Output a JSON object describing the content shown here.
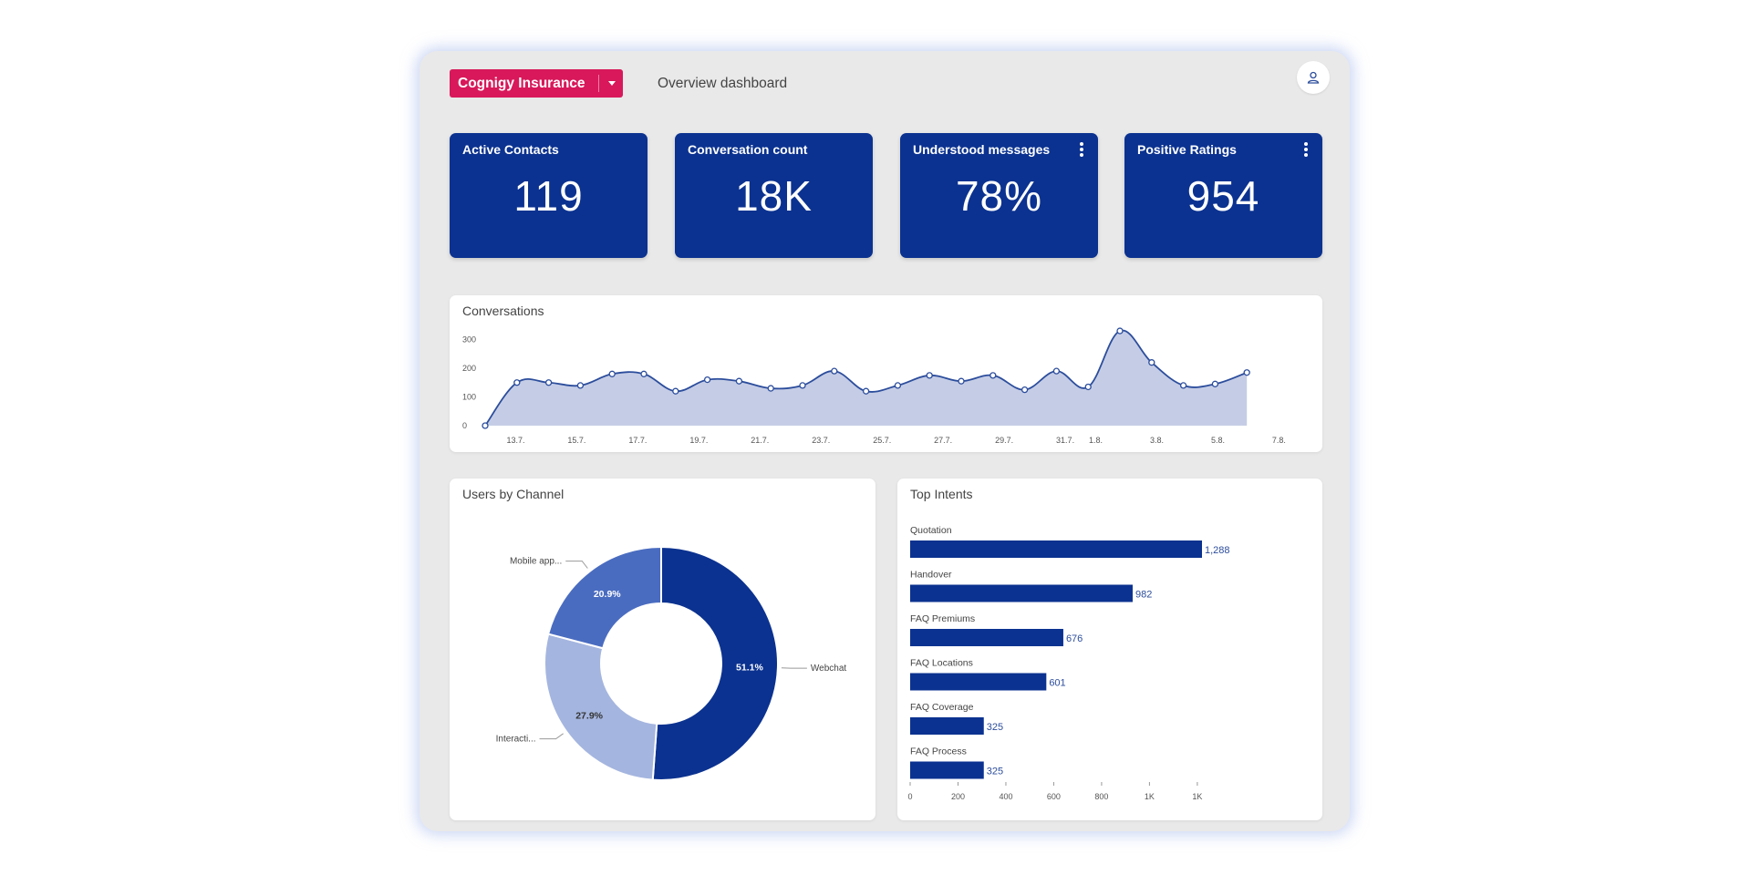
{
  "header": {
    "brand_label": "Cognigy Insurance",
    "page_title": "Overview dashboard",
    "user_icon": "user-icon"
  },
  "kpis": [
    {
      "title": "Active Contacts",
      "value": "119",
      "has_menu": false
    },
    {
      "title": "Conversation count",
      "value": "18K",
      "has_menu": false
    },
    {
      "title": "Understood messages",
      "value": "78%",
      "has_menu": true
    },
    {
      "title": "Positive Ratings",
      "value": "954",
      "has_menu": true
    }
  ],
  "colors": {
    "accent": "#d8185a",
    "primary": "#0b3290",
    "area_fill": "#c5cde6",
    "line": "#2c4d9c",
    "donut": [
      "#0b3290",
      "#a4b5df",
      "#4a6cc0"
    ]
  },
  "chart_data": [
    {
      "type": "area",
      "title": "Conversations",
      "y_ticks": [
        "300",
        "200",
        "100",
        "0"
      ],
      "ylim": [
        0,
        350
      ],
      "x_tick_labels": [
        {
          "i": 1,
          "label": "13.7."
        },
        {
          "i": 3,
          "label": "15.7."
        },
        {
          "i": 5,
          "label": "17.7."
        },
        {
          "i": 7,
          "label": "19.7."
        },
        {
          "i": 9,
          "label": "21.7."
        },
        {
          "i": 11,
          "label": "23.7."
        },
        {
          "i": 13,
          "label": "25.7."
        },
        {
          "i": 15,
          "label": "27.7."
        },
        {
          "i": 17,
          "label": "29.7."
        },
        {
          "i": 19,
          "label": "31.7."
        },
        {
          "i": 20,
          "label": "1.8."
        },
        {
          "i": 22,
          "label": "3.8."
        },
        {
          "i": 24,
          "label": "5.8."
        },
        {
          "i": 26,
          "label": "7.8."
        }
      ],
      "values": [
        0,
        150,
        150,
        140,
        180,
        180,
        120,
        160,
        155,
        130,
        140,
        190,
        120,
        140,
        175,
        155,
        175,
        125,
        190,
        135,
        330,
        220,
        140,
        145,
        185
      ]
    },
    {
      "type": "pie",
      "title": "Users by Channel",
      "donut": true,
      "slices": [
        {
          "label": "Webchat",
          "value": 51.1,
          "pct_label": "51.1%"
        },
        {
          "label": "Interacti...",
          "value": 27.9,
          "pct_label": "27.9%"
        },
        {
          "label": "Mobile app...",
          "value": 20.9,
          "pct_label": "20.9%"
        }
      ]
    },
    {
      "type": "bar",
      "orientation": "horizontal",
      "title": "Top Intents",
      "categories": [
        "Quotation",
        "Handover",
        "FAQ Premiums",
        "FAQ Locations",
        "FAQ Coverage",
        "FAQ Process"
      ],
      "values": [
        1288,
        982,
        676,
        601,
        325,
        325
      ],
      "value_labels": [
        "1,288",
        "982",
        "676",
        "601",
        "325",
        "325"
      ],
      "x_ticks": [
        {
          "v": 0,
          "label": "0"
        },
        {
          "v": 200,
          "label": "200"
        },
        {
          "v": 400,
          "label": "400"
        },
        {
          "v": 600,
          "label": "600"
        },
        {
          "v": 800,
          "label": "800"
        },
        {
          "v": 1000,
          "label": "1K"
        },
        {
          "v": 1200,
          "label": "1K"
        }
      ],
      "xlim": [
        0,
        1300
      ]
    }
  ]
}
